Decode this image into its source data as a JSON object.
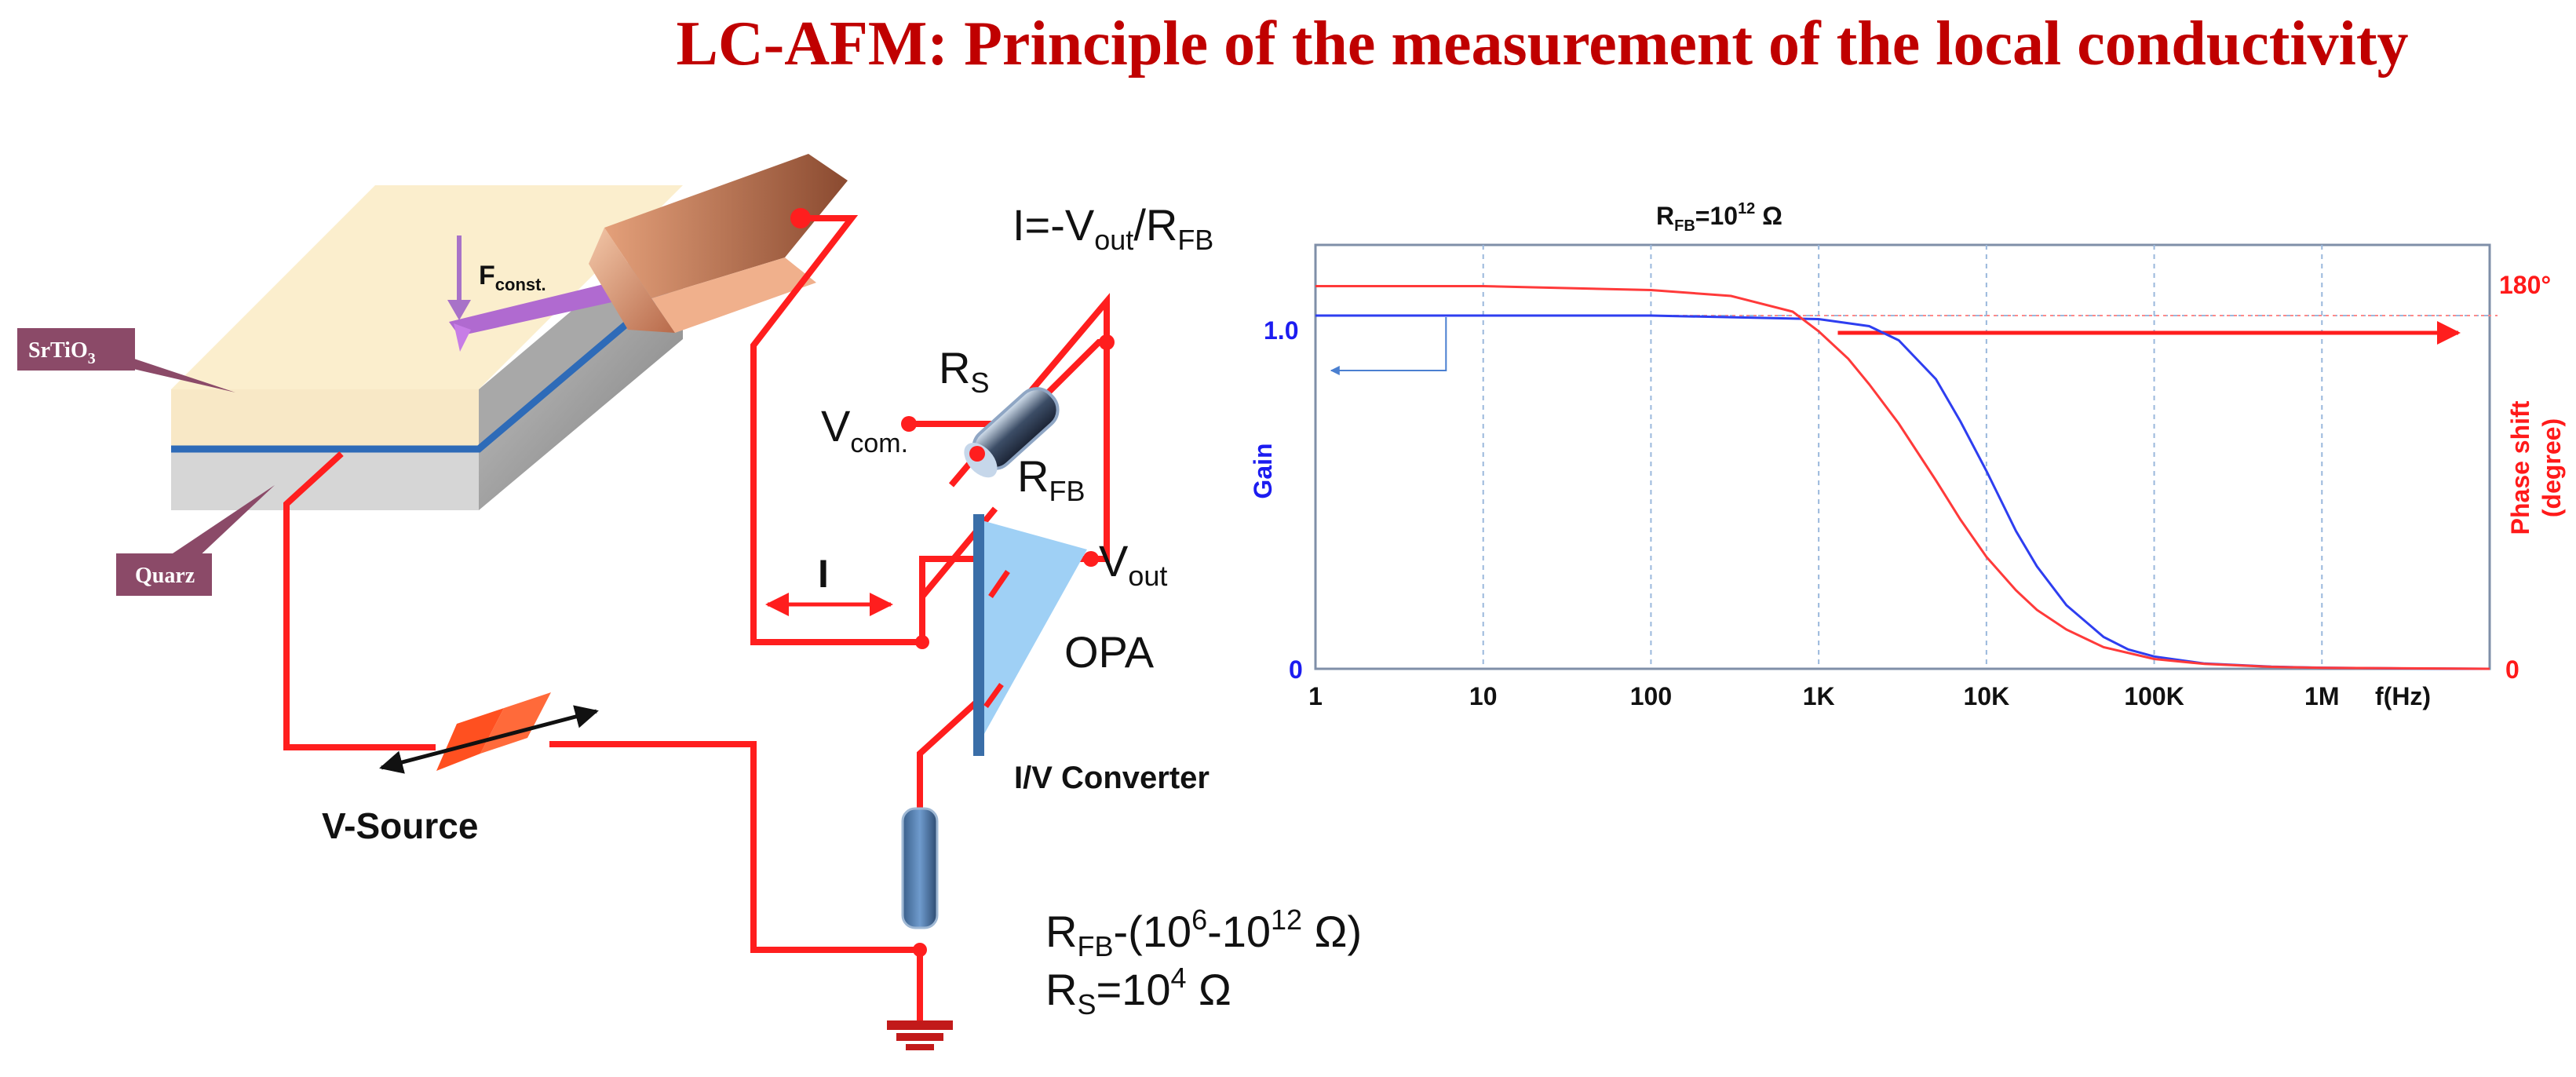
{
  "title": "LC-AFM: Principle of the measurement of the local conductivity",
  "sample": {
    "srtio3_label": "SrTiO",
    "srtio3_sub": "3",
    "quarz_label": "Quarz",
    "force_label": "F",
    "force_sub": "const."
  },
  "circuit": {
    "current_eq_parts": [
      "I=-V",
      "out",
      "/R",
      "FB"
    ],
    "rs_main": "R",
    "rs_sub": "S",
    "vcom_main": "V",
    "vcom_sub": "com.",
    "rfb_main": "R",
    "rfb_sub": "FB",
    "vout_main": "V",
    "vout_sub": "out",
    "current_label": "I",
    "opa_label": "OPA",
    "iv_label": "I/V Converter",
    "vsource_label": "V-Source",
    "range_line": {
      "p1": "R",
      "p2": "FB",
      "p3": "-(10",
      "p4": "6",
      "p5": "-10",
      "p6": "12",
      "p7": " Ω)"
    },
    "rs_value_line": {
      "p1": "R",
      "p2": "S",
      "p3": "=10",
      "p4": "4",
      "p5": " Ω"
    }
  },
  "chart_data": {
    "type": "line",
    "title_parts": [
      "R",
      "FB",
      "=10",
      "12",
      " Ω"
    ],
    "x_tick_labels": [
      "1",
      "10",
      "100",
      "1K",
      "10K",
      "100K",
      "1M"
    ],
    "x_tick_values": [
      1,
      10,
      100,
      1000,
      10000,
      100000,
      1000000
    ],
    "x_unit_label": "f(Hz)",
    "x_scale": "log",
    "xlim": [
      1,
      10000000
    ],
    "left_axis": {
      "label": "Gain",
      "ticks": [
        "1.0",
        "0"
      ],
      "color": "#1c1cf0",
      "ylim": [
        0,
        1.2
      ]
    },
    "right_axis": {
      "label_line1": "Phase shift",
      "label_line2": "(degree)",
      "ticks": [
        "180°",
        "0"
      ],
      "color": "#ff1a1a",
      "ylim": [
        0,
        216
      ]
    },
    "grid": true,
    "series": [
      {
        "axis": "left",
        "color": "#2e3ef0",
        "x": [
          1,
          10,
          100,
          1000,
          2000,
          3000,
          5000,
          7000,
          10000,
          15000,
          20000,
          30000,
          50000,
          70000,
          100000,
          200000,
          500000,
          1000000,
          3000000,
          10000000
        ],
        "y": [
          1.0,
          1.0,
          1.0,
          0.99,
          0.97,
          0.93,
          0.82,
          0.7,
          0.56,
          0.39,
          0.29,
          0.18,
          0.09,
          0.055,
          0.035,
          0.015,
          0.006,
          0.003,
          0.001,
          0
        ]
      },
      {
        "axis": "right",
        "color": "#ff3a3a",
        "x": [
          1,
          10,
          100,
          300,
          700,
          1000,
          1500,
          2000,
          3000,
          5000,
          7000,
          10000,
          15000,
          20000,
          30000,
          50000,
          100000,
          200000,
          500000,
          1000000,
          10000000
        ],
        "y": [
          195,
          195,
          193,
          190,
          182,
          172,
          158,
          145,
          125,
          96,
          76,
          57,
          40,
          30,
          20,
          11,
          5,
          2.5,
          1,
          0.5,
          0
        ]
      }
    ],
    "reference": {
      "axis": "right",
      "value": 180,
      "note_arrow": "right-axis"
    },
    "gain_arrow": {
      "axis": "left"
    }
  },
  "colors": {
    "wire": "#ff1e1e",
    "title": "#c00000",
    "tag": "#8b4a68",
    "opa_fill": "#9fd0f5",
    "grid": "#9ab8dc"
  }
}
